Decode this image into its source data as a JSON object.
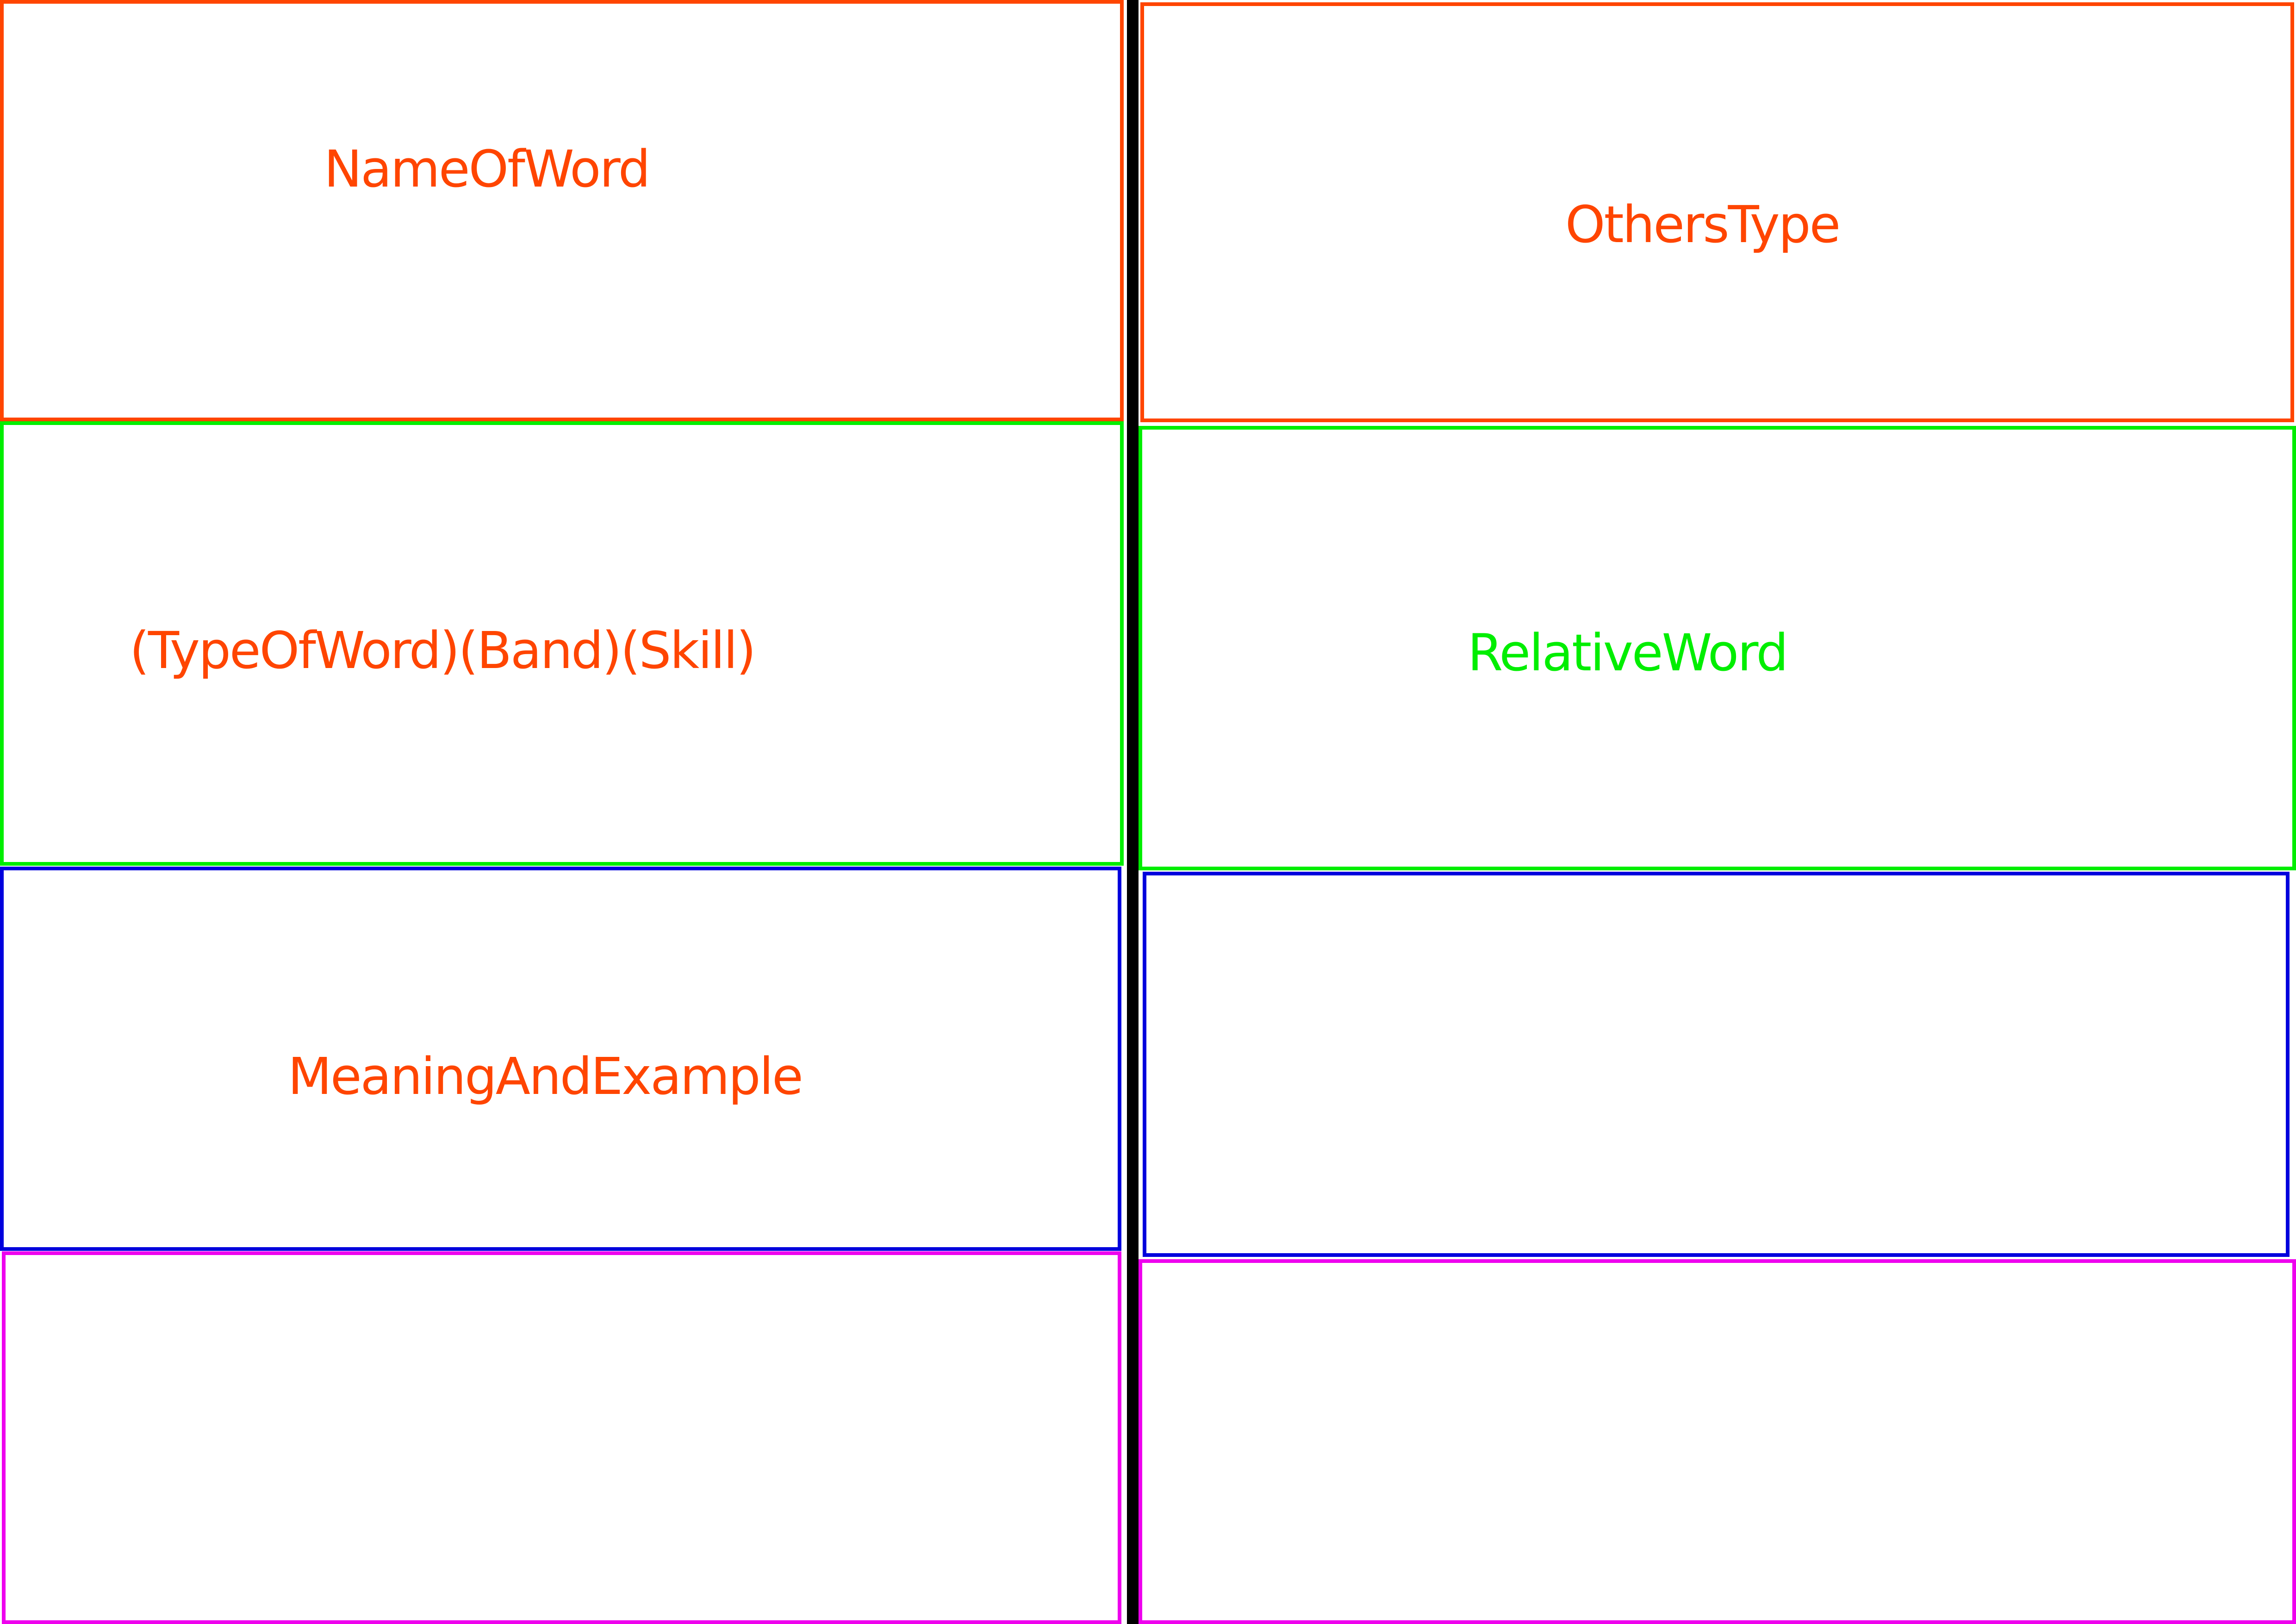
{
  "colors": {
    "orange": "#ff4500",
    "green": "#00ee00",
    "blue": "#0000dd",
    "magenta": "#ee00ee",
    "divider": "#000000",
    "background": "#ffffff"
  },
  "left_column": {
    "name_of_word": "NameOfWord",
    "type_band_skill": "(TypeOfWord)(Band)(Skill)",
    "meaning_and_example": "MeaningAndExample"
  },
  "right_column": {
    "others_type": "OthersType",
    "relative_word": "RelativeWord"
  }
}
